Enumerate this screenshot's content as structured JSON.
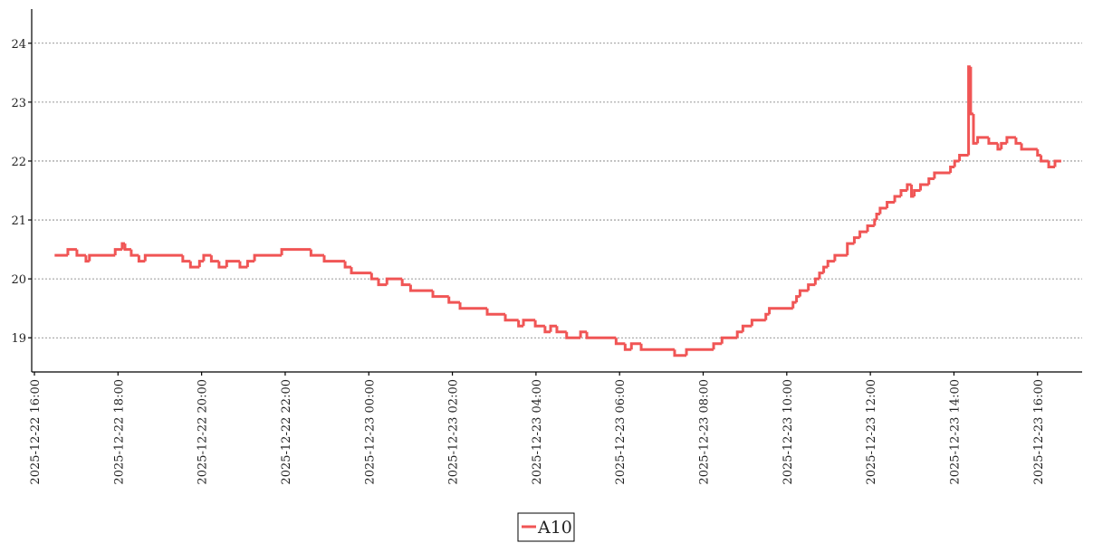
{
  "chart_data": {
    "type": "line",
    "step": true,
    "x": [
      "2025-12-22 16:29",
      "2025-12-22 16:48",
      "2025-12-22 17:01",
      "2025-12-22 17:14",
      "2025-12-22 17:19",
      "2025-12-22 17:56",
      "2025-12-22 18:06",
      "2025-12-22 18:10",
      "2025-12-22 18:19",
      "2025-12-22 18:30",
      "2025-12-22 18:39",
      "2025-12-22 19:33",
      "2025-12-22 19:44",
      "2025-12-22 19:57",
      "2025-12-22 20:03",
      "2025-12-22 20:14",
      "2025-12-22 20:25",
      "2025-12-22 20:36",
      "2025-12-22 20:55",
      "2025-12-22 21:06",
      "2025-12-22 21:16",
      "2025-12-22 21:55",
      "2025-12-22 22:37",
      "2025-12-22 22:56",
      "2025-12-22 23:26",
      "2025-12-22 23:35",
      "2025-12-23 00:04",
      "2025-12-23 00:14",
      "2025-12-23 00:26",
      "2025-12-23 00:48",
      "2025-12-23 01:00",
      "2025-12-23 01:32",
      "2025-12-23 01:55",
      "2025-12-23 02:11",
      "2025-12-23 02:50",
      "2025-12-23 03:16",
      "2025-12-23 03:35",
      "2025-12-23 03:42",
      "2025-12-23 03:59",
      "2025-12-23 04:13",
      "2025-12-23 04:21",
      "2025-12-23 04:30",
      "2025-12-23 04:44",
      "2025-12-23 05:04",
      "2025-12-23 05:13",
      "2025-12-23 05:55",
      "2025-12-23 06:08",
      "2025-12-23 06:17",
      "2025-12-23 06:31",
      "2025-12-23 07:19",
      "2025-12-23 07:36",
      "2025-12-23 08:15",
      "2025-12-23 08:27",
      "2025-12-23 08:49",
      "2025-12-23 08:57",
      "2025-12-23 09:10",
      "2025-12-23 09:30",
      "2025-12-23 09:35",
      "2025-12-23 10:09",
      "2025-12-23 10:14",
      "2025-12-23 10:19",
      "2025-12-23 10:31",
      "2025-12-23 10:41",
      "2025-12-23 10:47",
      "2025-12-23 10:53",
      "2025-12-23 10:59",
      "2025-12-23 11:09",
      "2025-12-23 11:27",
      "2025-12-23 11:37",
      "2025-12-23 11:45",
      "2025-12-23 11:56",
      "2025-12-23 12:06",
      "2025-12-23 12:09",
      "2025-12-23 12:14",
      "2025-12-23 12:24",
      "2025-12-23 12:35",
      "2025-12-23 12:44",
      "2025-12-23 12:53",
      "2025-12-23 12:59",
      "2025-12-23 13:03",
      "2025-12-23 13:12",
      "2025-12-23 13:24",
      "2025-12-23 13:32",
      "2025-12-23 13:55",
      "2025-12-23 14:01",
      "2025-12-23 14:08",
      "2025-12-23 14:21",
      "2025-12-23 14:24",
      "2025-12-23 14:28",
      "2025-12-23 14:34",
      "2025-12-23 14:50",
      "2025-12-23 15:03",
      "2025-12-23 15:08",
      "2025-12-23 15:16",
      "2025-12-23 15:29",
      "2025-12-23 15:37",
      "2025-12-23 16:00",
      "2025-12-23 16:05",
      "2025-12-23 16:16",
      "2025-12-23 16:25",
      "2025-12-23 16:34"
    ],
    "series": [
      {
        "name": "A10",
        "color": "#f05555",
        "values": [
          20.4,
          20.5,
          20.4,
          20.3,
          20.4,
          20.5,
          20.6,
          20.5,
          20.4,
          20.3,
          20.4,
          20.3,
          20.2,
          20.3,
          20.4,
          20.3,
          20.2,
          20.3,
          20.2,
          20.3,
          20.4,
          20.5,
          20.4,
          20.3,
          20.2,
          20.1,
          20.0,
          19.9,
          20.0,
          19.9,
          19.8,
          19.7,
          19.6,
          19.5,
          19.4,
          19.3,
          19.2,
          19.3,
          19.2,
          19.1,
          19.2,
          19.1,
          19.0,
          19.1,
          19.0,
          18.9,
          18.8,
          18.9,
          18.8,
          18.7,
          18.8,
          18.9,
          19.0,
          19.1,
          19.2,
          19.3,
          19.4,
          19.5,
          19.6,
          19.7,
          19.8,
          19.9,
          20.0,
          20.1,
          20.2,
          20.3,
          20.4,
          20.6,
          20.7,
          20.8,
          20.9,
          21.0,
          21.1,
          21.2,
          21.3,
          21.4,
          21.5,
          21.6,
          21.4,
          21.5,
          21.6,
          21.7,
          21.8,
          21.9,
          22.0,
          22.1,
          23.6,
          22.8,
          22.3,
          22.4,
          22.3,
          22.2,
          22.3,
          22.4,
          22.3,
          22.2,
          22.1,
          22.0,
          21.9,
          22.0,
          22.0
        ]
      }
    ],
    "xlim": [
      "2025-12-22 16:00",
      "2025-12-23 17:04"
    ],
    "xticks": [
      "2025-12-22 16:00",
      "2025-12-22 18:00",
      "2025-12-22 20:00",
      "2025-12-22 22:00",
      "2025-12-23 00:00",
      "2025-12-23 02:00",
      "2025-12-23 04:00",
      "2025-12-23 06:00",
      "2025-12-23 08:00",
      "2025-12-23 10:00",
      "2025-12-23 12:00",
      "2025-12-23 14:00",
      "2025-12-23 16:00"
    ],
    "ylim": [
      18.42,
      24.58
    ],
    "yticks": [
      19,
      20,
      21,
      22,
      23,
      24
    ],
    "grid": true,
    "legend": "bottom"
  }
}
